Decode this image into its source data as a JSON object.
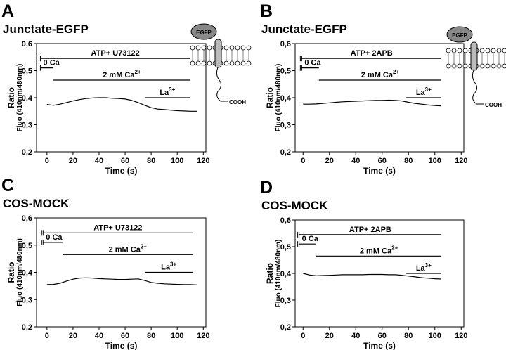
{
  "chart_data": [
    {
      "type": "line",
      "panel": "A",
      "title": "Junctate-EGFP",
      "xlabel": "Time (s)",
      "ylabel": "Ratio",
      "ylabel2": "Fluo (410nm/480nm)",
      "xlim": [
        -8,
        122
      ],
      "ylim": [
        0.2,
        0.6
      ],
      "xticks": [
        0,
        20,
        40,
        60,
        80,
        100,
        120
      ],
      "yticks": [
        {
          "value": 0.2,
          "label": "0,2"
        },
        {
          "value": 0.3,
          "label": "0,3"
        },
        {
          "value": 0.4,
          "label": "0,4"
        },
        {
          "value": 0.5,
          "label": "0,5"
        },
        {
          "value": 0.6,
          "label": "0,6"
        }
      ],
      "x": [
        0,
        5,
        10,
        15,
        20,
        25,
        30,
        35,
        40,
        45,
        50,
        55,
        60,
        65,
        70,
        75,
        80,
        85,
        90,
        95,
        100,
        105,
        110,
        115
      ],
      "values": [
        0.375,
        0.372,
        0.376,
        0.382,
        0.388,
        0.393,
        0.397,
        0.399,
        0.4,
        0.4,
        0.398,
        0.397,
        0.395,
        0.39,
        0.382,
        0.372,
        0.363,
        0.358,
        0.356,
        0.354,
        0.352,
        0.351,
        0.35,
        0.35
      ],
      "color": "#000000",
      "annotations": [
        {
          "text": "ATP+ U73122",
          "start": -5,
          "end": 110
        },
        {
          "text": "0 Ca",
          "start": -5,
          "end": 5
        },
        {
          "text": "2 mM Ca",
          "sup": "2+",
          "start": 5,
          "end": 110
        },
        {
          "text": "La",
          "sup": "3+",
          "start": 75,
          "end": 110
        }
      ],
      "inset": {
        "labels": [
          "EGFP",
          "COOH"
        ]
      }
    },
    {
      "type": "line",
      "panel": "B",
      "title": "Junctate-EGFP",
      "xlabel": "Time (s)",
      "ylabel": "Ratio",
      "ylabel2": "Fluo (410nm/480nm)",
      "xlim": [
        -6,
        122
      ],
      "ylim": [
        0.2,
        0.6
      ],
      "xticks": [
        0,
        20,
        40,
        60,
        80,
        100,
        120
      ],
      "yticks": [
        {
          "value": 0.2,
          "label": "0,2"
        },
        {
          "value": 0.3,
          "label": "0,3"
        },
        {
          "value": 0.4,
          "label": "0,4"
        },
        {
          "value": 0.5,
          "label": "0,5"
        },
        {
          "value": 0.6,
          "label": "0,6"
        }
      ],
      "x": [
        0,
        5,
        10,
        15,
        20,
        25,
        30,
        35,
        40,
        45,
        50,
        55,
        60,
        65,
        70,
        75,
        80,
        85,
        90,
        95,
        100,
        105
      ],
      "values": [
        0.376,
        0.376,
        0.377,
        0.379,
        0.381,
        0.383,
        0.385,
        0.386,
        0.387,
        0.388,
        0.389,
        0.39,
        0.39,
        0.391,
        0.39,
        0.388,
        0.383,
        0.379,
        0.376,
        0.373,
        0.371,
        0.37
      ],
      "color": "#000000",
      "annotations": [
        {
          "text": "ATP+ 2APB",
          "start": -1,
          "end": 105
        },
        {
          "text": "0 Ca",
          "start": -1,
          "end": 12
        },
        {
          "text": "2 mM Ca",
          "sup": "2+",
          "start": 12,
          "end": 105
        },
        {
          "text": "La",
          "sup": "3+",
          "start": 78,
          "end": 105
        }
      ],
      "inset": {
        "labels": [
          "EGFP",
          "COOH"
        ]
      }
    },
    {
      "type": "line",
      "panel": "C",
      "title": "COS-MOCK",
      "xlabel": "Time (s)",
      "ylabel": "Ratio",
      "ylabel2": "Fluo (410nm/480nm)",
      "xlim": [
        -8,
        122
      ],
      "ylim": [
        0.2,
        0.6
      ],
      "xticks": [
        0,
        20,
        40,
        60,
        80,
        100,
        120
      ],
      "yticks": [
        {
          "value": 0.2,
          "label": "0,2"
        },
        {
          "value": 0.3,
          "label": "0,3"
        },
        {
          "value": 0.4,
          "label": "0,4"
        },
        {
          "value": 0.5,
          "label": "0,5"
        },
        {
          "value": 0.6,
          "label": "0,6"
        }
      ],
      "x": [
        0,
        5,
        10,
        15,
        20,
        25,
        30,
        35,
        40,
        45,
        50,
        55,
        60,
        65,
        70,
        75,
        80,
        85,
        90,
        95,
        100,
        105,
        110,
        115
      ],
      "values": [
        0.355,
        0.356,
        0.36,
        0.368,
        0.375,
        0.379,
        0.38,
        0.379,
        0.377,
        0.376,
        0.375,
        0.374,
        0.374,
        0.375,
        0.376,
        0.37,
        0.363,
        0.36,
        0.358,
        0.357,
        0.356,
        0.355,
        0.355,
        0.354
      ],
      "color": "#000000",
      "annotations": [
        {
          "text": "ATP+ U73122",
          "start": -3,
          "end": 112
        },
        {
          "text": "0 Ca",
          "start": -3,
          "end": 12
        },
        {
          "text": "2 mM Ca",
          "sup": "2+",
          "start": 12,
          "end": 112
        },
        {
          "text": "La",
          "sup": "3+",
          "start": 75,
          "end": 112
        }
      ]
    },
    {
      "type": "line",
      "panel": "D",
      "title": "COS-MOCK",
      "xlabel": "Time (s)",
      "ylabel": "Ratio",
      "ylabel2": "Fluo (410nm/480nm)",
      "xlim": [
        -6,
        122
      ],
      "ylim": [
        0.2,
        0.6
      ],
      "xticks": [
        0,
        20,
        40,
        60,
        80,
        100,
        120
      ],
      "yticks": [
        {
          "value": 0.2,
          "label": "0,2"
        },
        {
          "value": 0.3,
          "label": "0,3"
        },
        {
          "value": 0.4,
          "label": "0,4"
        },
        {
          "value": 0.5,
          "label": "0,5"
        },
        {
          "value": 0.6,
          "label": "0,6"
        }
      ],
      "x": [
        0,
        5,
        10,
        15,
        20,
        25,
        30,
        35,
        40,
        45,
        50,
        55,
        60,
        65,
        70,
        75,
        80,
        85,
        90,
        95,
        100,
        105
      ],
      "values": [
        0.4,
        0.394,
        0.391,
        0.392,
        0.393,
        0.394,
        0.395,
        0.395,
        0.395,
        0.395,
        0.396,
        0.396,
        0.396,
        0.395,
        0.395,
        0.393,
        0.39,
        0.387,
        0.384,
        0.382,
        0.38,
        0.379
      ],
      "color": "#000000",
      "annotations": [
        {
          "text": "ATP+ 2APB",
          "start": -3,
          "end": 105
        },
        {
          "text": "0 Ca",
          "start": -3,
          "end": 10
        },
        {
          "text": "2 mM Ca",
          "sup": "2+",
          "start": 10,
          "end": 105
        },
        {
          "text": "La",
          "sup": "3+",
          "start": 78,
          "end": 105
        }
      ]
    }
  ]
}
